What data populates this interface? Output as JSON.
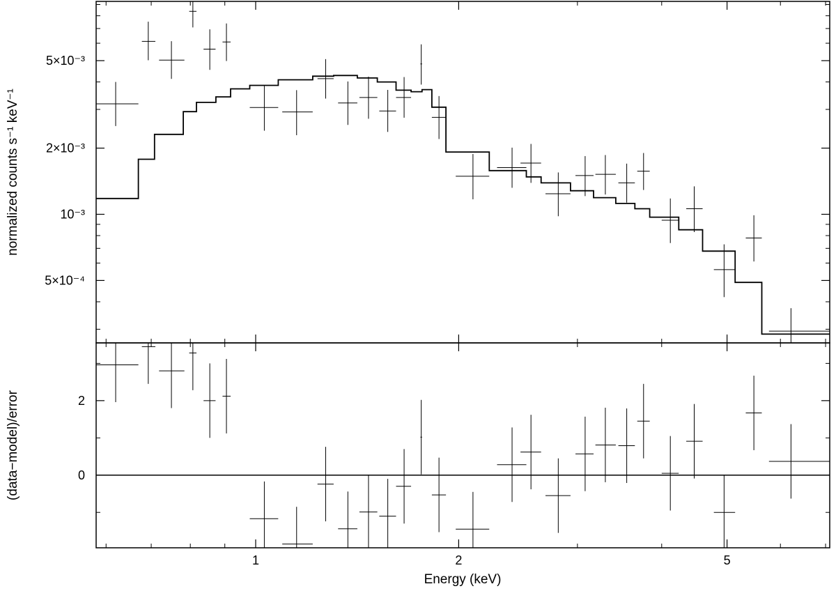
{
  "chart_data": [
    {
      "type": "scatter",
      "panel": "spectrum",
      "xlabel": "",
      "ylabel": "normalized counts s⁻¹ keV⁻¹",
      "xscale": "log",
      "yscale": "log",
      "xlim": [
        0.58,
        7.1
      ],
      "ylim": [
        0.00026,
        0.0093
      ],
      "y_ticks": [
        {
          "value": 0.0005,
          "label": "5×10⁻⁴"
        },
        {
          "value": 0.001,
          "label": "10⁻³"
        },
        {
          "value": 0.002,
          "label": "2×10⁻³"
        },
        {
          "value": 0.005,
          "label": "5×10⁻³"
        }
      ],
      "series": [
        {
          "kind": "data_with_errors",
          "points": [
            {
              "x": 0.62,
              "y": 0.00318,
              "xerr": [
                0.04,
                0.05
              ],
              "yerr": [
                0.00066,
                0.00082
              ]
            },
            {
              "x": 0.693,
              "y": 0.00612,
              "xerr": [
                0.015,
                0.017
              ],
              "yerr": [
                0.0011,
                0.0014
              ]
            },
            {
              "x": 0.75,
              "y": 0.00503,
              "xerr": [
                0.031,
                0.034
              ],
              "yerr": [
                0.0009,
                0.0011
              ]
            },
            {
              "x": 0.807,
              "y": 0.00838,
              "xerr": [
                0.01,
                0.01
              ],
              "yerr": [
                0.0013,
                0.0015
              ]
            },
            {
              "x": 0.855,
              "y": 0.00564,
              "xerr": [
                0.018,
                0.017
              ],
              "yerr": [
                0.0011,
                0.0013
              ]
            },
            {
              "x": 0.905,
              "y": 0.00608,
              "xerr": [
                0.012,
                0.013
              ],
              "yerr": [
                0.0011,
                0.0013
              ]
            },
            {
              "x": 1.03,
              "y": 0.00306,
              "xerr": [
                0.05,
                0.05
              ],
              "yerr": [
                0.00066,
                0.00078
              ]
            },
            {
              "x": 1.15,
              "y": 0.00292,
              "xerr": [
                0.055,
                0.065
              ],
              "yerr": [
                0.00063,
                0.00075
              ]
            },
            {
              "x": 1.27,
              "y": 0.00414,
              "xerr": [
                0.035,
                0.035
              ],
              "yerr": [
                0.00078,
                0.00094
              ]
            },
            {
              "x": 1.37,
              "y": 0.00321,
              "xerr": [
                0.045,
                0.045
              ],
              "yerr": [
                0.00066,
                0.00081
              ]
            },
            {
              "x": 1.47,
              "y": 0.0034,
              "xerr": [
                0.045,
                0.045
              ],
              "yerr": [
                0.00068,
                0.00083
              ]
            },
            {
              "x": 1.57,
              "y": 0.00295,
              "xerr": [
                0.045,
                0.045
              ],
              "yerr": [
                0.00058,
                0.00073
              ]
            },
            {
              "x": 1.66,
              "y": 0.0034,
              "xerr": [
                0.045,
                0.04
              ],
              "yerr": [
                0.00065,
                0.00081
              ]
            },
            {
              "x": 1.76,
              "y": 0.00483,
              "xerr": [
                0.005,
                0.005
              ],
              "yerr": [
                0.00094,
                0.0011
              ]
            },
            {
              "x": 1.87,
              "y": 0.00276,
              "xerr": [
                0.045,
                0.045
              ],
              "yerr": [
                0.00056,
                0.00069
              ]
            },
            {
              "x": 2.1,
              "y": 0.00149,
              "xerr": [
                0.12,
                0.12
              ],
              "yerr": [
                0.00032,
                0.00039
              ]
            },
            {
              "x": 2.4,
              "y": 0.00163,
              "xerr": [
                0.12,
                0.12
              ],
              "yerr": [
                0.00031,
                0.00038
              ]
            },
            {
              "x": 2.56,
              "y": 0.00171,
              "xerr": [
                0.09,
                0.09
              ],
              "yerr": [
                0.00032,
                0.00038
              ]
            },
            {
              "x": 2.81,
              "y": 0.00124,
              "xerr": [
                0.12,
                0.12
              ],
              "yerr": [
                0.00026,
                0.00031
              ]
            },
            {
              "x": 3.08,
              "y": 0.0015,
              "xerr": [
                0.1,
                0.09
              ],
              "yerr": [
                0.00029,
                0.00034
              ]
            },
            {
              "x": 3.3,
              "y": 0.00152,
              "xerr": [
                0.11,
                0.12
              ],
              "yerr": [
                0.00029,
                0.00034
              ]
            },
            {
              "x": 3.55,
              "y": 0.00139,
              "xerr": [
                0.1,
                0.1
              ],
              "yerr": [
                0.00026,
                0.00031
              ]
            },
            {
              "x": 3.76,
              "y": 0.00157,
              "xerr": [
                0.08,
                0.08
              ],
              "yerr": [
                0.00028,
                0.00033
              ]
            },
            {
              "x": 4.12,
              "y": 0.00094,
              "xerr": [
                0.12,
                0.12
              ],
              "yerr": [
                0.0002,
                0.00024
              ]
            },
            {
              "x": 4.47,
              "y": 0.00106,
              "xerr": [
                0.12,
                0.13
              ],
              "yerr": [
                0.00023,
                0.00028
              ]
            },
            {
              "x": 4.95,
              "y": 0.00056,
              "xerr": [
                0.17,
                0.19
              ],
              "yerr": [
                0.00014,
                0.00017
              ]
            },
            {
              "x": 5.48,
              "y": 0.00078,
              "xerr": [
                0.15,
                0.15
              ],
              "yerr": [
                0.00017,
                0.00021
              ]
            },
            {
              "x": 6.22,
              "y": 0.000294,
              "xerr": [
                0.45,
                0.88
              ],
              "yerr": [
                4e-05,
                8e-05
              ]
            }
          ]
        },
        {
          "kind": "model_histogram",
          "bins": [
            {
              "lo": 0.58,
              "hi": 0.67,
              "y": 0.00118
            },
            {
              "lo": 0.67,
              "hi": 0.708,
              "y": 0.00178
            },
            {
              "lo": 0.708,
              "hi": 0.781,
              "y": 0.00231
            },
            {
              "lo": 0.781,
              "hi": 0.817,
              "y": 0.00293
            },
            {
              "lo": 0.817,
              "hi": 0.873,
              "y": 0.00323
            },
            {
              "lo": 0.873,
              "hi": 0.918,
              "y": 0.00342
            },
            {
              "lo": 0.918,
              "hi": 0.98,
              "y": 0.00372
            },
            {
              "lo": 0.98,
              "hi": 1.08,
              "y": 0.00386
            },
            {
              "lo": 1.08,
              "hi": 1.215,
              "y": 0.00409
            },
            {
              "lo": 1.215,
              "hi": 1.305,
              "y": 0.00425
            },
            {
              "lo": 1.305,
              "hi": 1.415,
              "y": 0.00428
            },
            {
              "lo": 1.415,
              "hi": 1.515,
              "y": 0.00417
            },
            {
              "lo": 1.515,
              "hi": 1.615,
              "y": 0.004
            },
            {
              "lo": 1.615,
              "hi": 1.7,
              "y": 0.00367
            },
            {
              "lo": 1.7,
              "hi": 1.765,
              "y": 0.00361
            },
            {
              "lo": 1.765,
              "hi": 1.825,
              "y": 0.00369
            },
            {
              "lo": 1.825,
              "hi": 1.915,
              "y": 0.00307
            },
            {
              "lo": 1.915,
              "hi": 2.22,
              "y": 0.00192
            },
            {
              "lo": 2.22,
              "hi": 2.52,
              "y": 0.00158
            },
            {
              "lo": 2.52,
              "hi": 2.65,
              "y": 0.00148
            },
            {
              "lo": 2.65,
              "hi": 2.93,
              "y": 0.00139
            },
            {
              "lo": 2.93,
              "hi": 3.17,
              "y": 0.00128
            },
            {
              "lo": 3.17,
              "hi": 3.42,
              "y": 0.00119
            },
            {
              "lo": 3.42,
              "hi": 3.65,
              "y": 0.00112
            },
            {
              "lo": 3.65,
              "hi": 3.84,
              "y": 0.00106
            },
            {
              "lo": 3.84,
              "hi": 4.24,
              "y": 0.00097
            },
            {
              "lo": 4.24,
              "hi": 4.6,
              "y": 0.00085
            },
            {
              "lo": 4.6,
              "hi": 5.14,
              "y": 0.00068
            },
            {
              "lo": 5.14,
              "hi": 5.63,
              "y": 0.00049
            },
            {
              "lo": 5.63,
              "hi": 7.1,
              "y": 0.000285
            }
          ]
        }
      ]
    },
    {
      "type": "scatter",
      "panel": "residuals",
      "xlabel": "Energy (keV)",
      "ylabel": "(data−model)/error",
      "xscale": "log",
      "yscale": "linear",
      "xlim": [
        0.58,
        7.1
      ],
      "ylim": [
        -1.95,
        3.55
      ],
      "zero_line": 0,
      "x_ticks": [
        {
          "value": 1,
          "label": "1"
        },
        {
          "value": 2,
          "label": "2"
        },
        {
          "value": 5,
          "label": "5"
        }
      ],
      "y_ticks": [
        {
          "value": 0,
          "label": "0"
        },
        {
          "value": 2,
          "label": "2"
        }
      ],
      "series": [
        {
          "kind": "residuals_with_errors",
          "points": [
            {
              "x": 0.62,
              "y": 2.96,
              "xerr": [
                0.04,
                0.05
              ],
              "yerr": 1.0
            },
            {
              "x": 0.693,
              "y": 3.45,
              "xerr": [
                0.015,
                0.017
              ],
              "yerr": 1.0
            },
            {
              "x": 0.75,
              "y": 2.8,
              "xerr": [
                0.031,
                0.034
              ],
              "yerr": 1.0
            },
            {
              "x": 0.807,
              "y": 3.28,
              "xerr": [
                0.01,
                0.01
              ],
              "yerr": 1.0
            },
            {
              "x": 0.855,
              "y": 2.0,
              "xerr": [
                0.018,
                0.017
              ],
              "yerr": 1.0
            },
            {
              "x": 0.905,
              "y": 2.12,
              "xerr": [
                0.012,
                0.013
              ],
              "yerr": 1.0
            },
            {
              "x": 1.03,
              "y": -1.17,
              "xerr": [
                0.05,
                0.05
              ],
              "yerr": 1.0
            },
            {
              "x": 1.15,
              "y": -1.85,
              "xerr": [
                0.055,
                0.065
              ],
              "yerr": 1.0
            },
            {
              "x": 1.27,
              "y": -0.24,
              "xerr": [
                0.035,
                0.035
              ],
              "yerr": 1.0
            },
            {
              "x": 1.37,
              "y": -1.44,
              "xerr": [
                0.045,
                0.045
              ],
              "yerr": 1.0
            },
            {
              "x": 1.47,
              "y": -0.99,
              "xerr": [
                0.045,
                0.045
              ],
              "yerr": 1.0
            },
            {
              "x": 1.57,
              "y": -1.1,
              "xerr": [
                0.045,
                0.045
              ],
              "yerr": 1.0
            },
            {
              "x": 1.66,
              "y": -0.3,
              "xerr": [
                0.045,
                0.04
              ],
              "yerr": 1.0
            },
            {
              "x": 1.76,
              "y": 1.02,
              "xerr": [
                0.005,
                0.005
              ],
              "yerr": 1.0
            },
            {
              "x": 1.87,
              "y": -0.53,
              "xerr": [
                0.045,
                0.045
              ],
              "yerr": 1.0
            },
            {
              "x": 2.1,
              "y": -1.45,
              "xerr": [
                0.12,
                0.12
              ],
              "yerr": 1.0
            },
            {
              "x": 2.4,
              "y": 0.28,
              "xerr": [
                0.12,
                0.12
              ],
              "yerr": 1.0
            },
            {
              "x": 2.56,
              "y": 0.62,
              "xerr": [
                0.09,
                0.09
              ],
              "yerr": 1.0
            },
            {
              "x": 2.81,
              "y": -0.55,
              "xerr": [
                0.12,
                0.12
              ],
              "yerr": 1.0
            },
            {
              "x": 3.08,
              "y": 0.57,
              "xerr": [
                0.1,
                0.09
              ],
              "yerr": 1.0
            },
            {
              "x": 3.3,
              "y": 0.81,
              "xerr": [
                0.11,
                0.12
              ],
              "yerr": 1.0
            },
            {
              "x": 3.55,
              "y": 0.79,
              "xerr": [
                0.1,
                0.1
              ],
              "yerr": 1.0
            },
            {
              "x": 3.76,
              "y": 1.45,
              "xerr": [
                0.08,
                0.08
              ],
              "yerr": 1.0
            },
            {
              "x": 4.12,
              "y": 0.05,
              "xerr": [
                0.12,
                0.12
              ],
              "yerr": 1.0
            },
            {
              "x": 4.47,
              "y": 0.91,
              "xerr": [
                0.12,
                0.13
              ],
              "yerr": 1.0
            },
            {
              "x": 4.95,
              "y": -1.0,
              "xerr": [
                0.17,
                0.19
              ],
              "yerr": 1.0
            },
            {
              "x": 5.48,
              "y": 1.67,
              "xerr": [
                0.15,
                0.15
              ],
              "yerr": 1.0
            },
            {
              "x": 6.22,
              "y": 0.37,
              "xerr": [
                0.45,
                0.88
              ],
              "yerr": 1.0
            }
          ]
        }
      ]
    }
  ]
}
